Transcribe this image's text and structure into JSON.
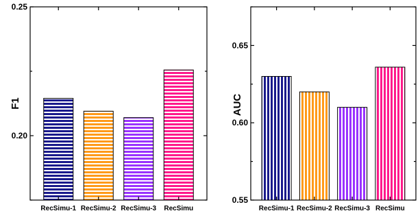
{
  "chart_data": [
    {
      "type": "bar",
      "categories": [
        "RecSimu-1",
        "RecSimu-2",
        "RecSimu-3",
        "RecSimu"
      ],
      "values": [
        0.2145,
        0.2095,
        0.207,
        0.2255
      ],
      "ylabel": "F1",
      "ylim": [
        0.175,
        0.25
      ],
      "yticks": [
        "0.20",
        "0.25"
      ],
      "ytick_values": [
        0.2,
        0.25
      ],
      "grid": false,
      "pattern": "horizontal-stripes",
      "colors": [
        "#1a1a8c",
        "#ff9a1a",
        "#9933ff",
        "#ff1a8c"
      ]
    },
    {
      "type": "bar",
      "categories": [
        "RecSimu-1",
        "RecSimu-2",
        "RecSimu-3",
        "RecSimu"
      ],
      "values": [
        0.63,
        0.62,
        0.61,
        0.636
      ],
      "ylabel": "AUC",
      "ylim": [
        0.55,
        0.675
      ],
      "yticks": [
        "0.55",
        "0.60",
        "0.65"
      ],
      "ytick_values": [
        0.55,
        0.6,
        0.65
      ],
      "grid": false,
      "pattern": "vertical-stripes",
      "colors": [
        "#1a1a8c",
        "#ff9a1a",
        "#9933ff",
        "#ff1a8c"
      ]
    }
  ]
}
